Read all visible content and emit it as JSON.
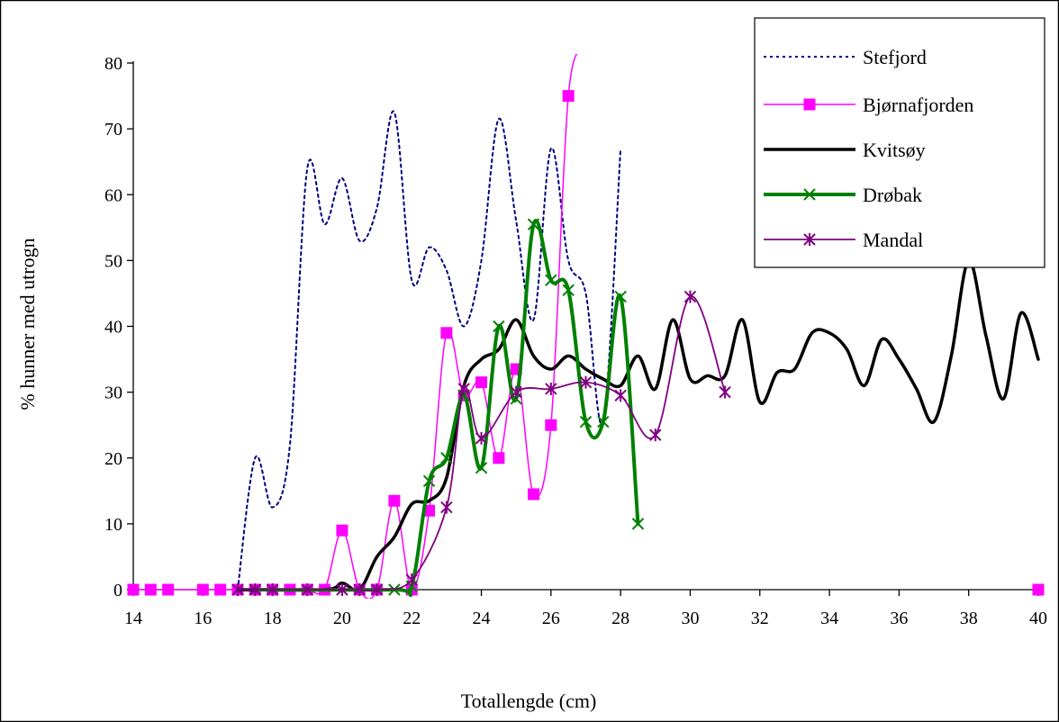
{
  "chart_data": {
    "type": "line",
    "title": "",
    "xlabel": "Totallengde (cm)",
    "ylabel": "% hunner med utrogn",
    "xlim": [
      14,
      40
    ],
    "ylim": [
      0,
      80
    ],
    "xticks": [
      14,
      16,
      18,
      20,
      22,
      24,
      26,
      28,
      30,
      32,
      34,
      36,
      38,
      40
    ],
    "yticks": [
      0,
      10,
      20,
      30,
      40,
      50,
      60,
      70,
      80
    ],
    "grid": false,
    "legend_position": "top-right",
    "series": [
      {
        "name": "Stefjord",
        "color": "#000080",
        "style": "dotted",
        "marker": "none",
        "points": [
          [
            17,
            0
          ],
          [
            17.5,
            20
          ],
          [
            18,
            12.5
          ],
          [
            18.5,
            22
          ],
          [
            19,
            64
          ],
          [
            19.5,
            55.5
          ],
          [
            20,
            62.5
          ],
          [
            20.5,
            53
          ],
          [
            21,
            58
          ],
          [
            21.5,
            72.5
          ],
          [
            22,
            47
          ],
          [
            22.5,
            52
          ],
          [
            23,
            48.5
          ],
          [
            23.5,
            40
          ],
          [
            24,
            50
          ],
          [
            24.5,
            71.5
          ],
          [
            25,
            56
          ],
          [
            25.5,
            41
          ],
          [
            26,
            67
          ],
          [
            26.5,
            50
          ],
          [
            27,
            45
          ],
          [
            27.5,
            25.5
          ],
          [
            28,
            67
          ]
        ]
      },
      {
        "name": "Bjørnafjorden",
        "color": "#ff00ff",
        "style": "solid",
        "marker": "square",
        "points": [
          [
            14,
            0
          ],
          [
            14.5,
            0
          ],
          [
            15,
            0
          ],
          [
            16,
            0
          ],
          [
            16.5,
            0
          ],
          [
            17,
            0
          ],
          [
            17.5,
            0
          ],
          [
            18,
            0
          ],
          [
            18.5,
            0
          ],
          [
            19,
            0
          ],
          [
            19.5,
            0
          ],
          [
            20,
            9
          ],
          [
            20.5,
            0
          ],
          [
            21,
            0
          ],
          [
            21.5,
            13.5
          ],
          [
            22,
            0
          ],
          [
            22.5,
            12
          ],
          [
            23,
            39
          ],
          [
            23.5,
            29.5
          ],
          [
            24,
            31.5
          ],
          [
            24.5,
            20
          ],
          [
            25,
            33.5
          ],
          [
            25.5,
            14.5
          ],
          [
            26,
            25
          ],
          [
            26.5,
            75
          ],
          [
            27,
            82
          ]
        ],
        "extra_points": [
          [
            40,
            0
          ]
        ]
      },
      {
        "name": "Kvitsøy",
        "color": "#000000",
        "style": "solid",
        "marker": "none",
        "points": [
          [
            17,
            0
          ],
          [
            19.5,
            0
          ],
          [
            20,
            1
          ],
          [
            20.5,
            0
          ],
          [
            21,
            5
          ],
          [
            21.5,
            8
          ],
          [
            22,
            13
          ],
          [
            22.5,
            13.5
          ],
          [
            23,
            17
          ],
          [
            23.5,
            31
          ],
          [
            24,
            35
          ],
          [
            24.5,
            36.5
          ],
          [
            25,
            41
          ],
          [
            25.5,
            35.5
          ],
          [
            26,
            33.5
          ],
          [
            26.5,
            35.5
          ],
          [
            27,
            33.5
          ],
          [
            27.5,
            32
          ],
          [
            28,
            31
          ],
          [
            28.5,
            35.5
          ],
          [
            29,
            30.5
          ],
          [
            29.5,
            41
          ],
          [
            30,
            32
          ],
          [
            30.5,
            32.5
          ],
          [
            31,
            32.5
          ],
          [
            31.5,
            41
          ],
          [
            32,
            28.5
          ],
          [
            32.5,
            33
          ],
          [
            33,
            33.5
          ],
          [
            33.5,
            39
          ],
          [
            34,
            39
          ],
          [
            34.5,
            36.5
          ],
          [
            35,
            31
          ],
          [
            35.5,
            38
          ],
          [
            36,
            35
          ],
          [
            36.5,
            30.5
          ],
          [
            37,
            25.5
          ],
          [
            37.5,
            35.5
          ],
          [
            38,
            50
          ],
          [
            38.5,
            38.5
          ],
          [
            39,
            29
          ],
          [
            39.5,
            42
          ],
          [
            40,
            35
          ]
        ]
      },
      {
        "name": "Drøbak",
        "color": "#008000",
        "style": "solid",
        "marker": "x",
        "points": [
          [
            17.5,
            0
          ],
          [
            21.5,
            0
          ],
          [
            22,
            0.5
          ],
          [
            22.5,
            16.5
          ],
          [
            23,
            20
          ],
          [
            23.5,
            29.5
          ],
          [
            24,
            18.5
          ],
          [
            24.5,
            40
          ],
          [
            25,
            29
          ],
          [
            25.5,
            55.5
          ],
          [
            26,
            47
          ],
          [
            26.5,
            45.5
          ],
          [
            27,
            25.5
          ],
          [
            27.5,
            25.5
          ],
          [
            28,
            44.5
          ],
          [
            28.5,
            10
          ]
        ]
      },
      {
        "name": "Mandal",
        "color": "#800080",
        "style": "solid",
        "marker": "asterisk",
        "points": [
          [
            17,
            0
          ],
          [
            17.5,
            0
          ],
          [
            18,
            0
          ],
          [
            19,
            0
          ],
          [
            20,
            0
          ],
          [
            20.5,
            0
          ],
          [
            21,
            0
          ],
          [
            22,
            1.5
          ],
          [
            23,
            12.5
          ],
          [
            23.5,
            30.5
          ],
          [
            24,
            23
          ],
          [
            25,
            30
          ],
          [
            26,
            30.5
          ],
          [
            27,
            31.5
          ],
          [
            28,
            29.5
          ],
          [
            29,
            23.5
          ],
          [
            30,
            44.5
          ],
          [
            31,
            30
          ]
        ]
      }
    ]
  }
}
